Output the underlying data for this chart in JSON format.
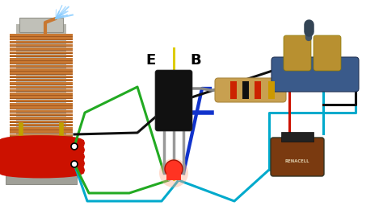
{
  "bg_color": "#ffffff",
  "wire_green": "#22aa22",
  "wire_yellow": "#ddcc00",
  "wire_blue": "#1133cc",
  "wire_cyan": "#00aacc",
  "wire_black": "#111111",
  "wire_red": "#cc1100",
  "coil_copper": "#c87832",
  "coil_copper_dark": "#a05820",
  "coil_primary_red": "#cc1100",
  "coil_core_light": "#c8c8c0",
  "coil_core_dark": "#a0a098",
  "transistor_body": "#111111",
  "transistor_lead": "#aaaaaa",
  "led_body": "#ff3322",
  "led_glow": "#ffaa88",
  "resistor_body": "#c8a050",
  "resistor_s1": "#cc2200",
  "resistor_s2": "#111111",
  "resistor_s3": "#cc2200",
  "resistor_s4": "#cc9900",
  "resistor_lead": "#888888",
  "battery_body": "#7a3a10",
  "battery_dark": "#222222",
  "spark_base": "#3a5a8a",
  "spark_metal": "#b89030",
  "spark_screw": "#445566",
  "label_E": "E",
  "label_B": "B",
  "font_size": 13
}
